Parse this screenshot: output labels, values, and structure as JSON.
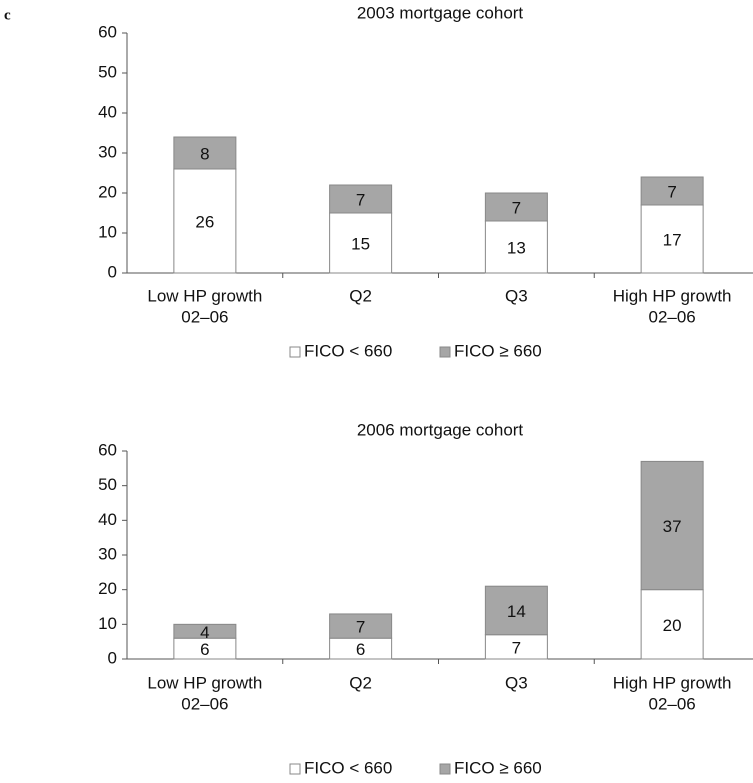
{
  "panel_label": "c",
  "chart_data": [
    {
      "type": "stacked_bar",
      "title": "2003 mortgage cohort",
      "categories": [
        [
          "Low HP growth",
          "02–06"
        ],
        [
          "Q2"
        ],
        [
          "Q3"
        ],
        [
          "High HP growth",
          "02–06"
        ]
      ],
      "series": [
        {
          "name": "FICO < 660",
          "color": "#ffffff",
          "values": [
            26,
            15,
            13,
            17
          ]
        },
        {
          "name": "FICO ≥ 660",
          "color": "#a6a6a6",
          "values": [
            8,
            7,
            7,
            7
          ]
        }
      ],
      "ylim": [
        0,
        60
      ],
      "yticks": [
        0,
        10,
        20,
        30,
        40,
        50,
        60
      ],
      "legend": "bottom"
    },
    {
      "type": "stacked_bar",
      "title": "2006 mortgage cohort",
      "categories": [
        [
          "Low HP growth",
          "02–06"
        ],
        [
          "Q2"
        ],
        [
          "Q3"
        ],
        [
          "High HP growth",
          "02–06"
        ]
      ],
      "series": [
        {
          "name": "FICO < 660",
          "color": "#ffffff",
          "values": [
            6,
            6,
            7,
            20
          ]
        },
        {
          "name": "FICO ≥ 660",
          "color": "#a6a6a6",
          "values": [
            4,
            7,
            14,
            37
          ]
        }
      ],
      "ylim": [
        0,
        60
      ],
      "yticks": [
        0,
        10,
        20,
        30,
        40,
        50,
        60
      ],
      "legend": "bottom"
    }
  ]
}
